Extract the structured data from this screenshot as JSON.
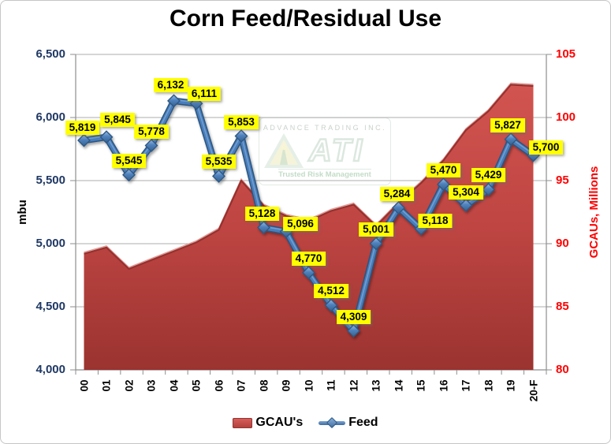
{
  "title": "Corn Feed/Residual Use",
  "watermark": {
    "line1": "ADVANCE TRADING INC.",
    "line2": "ATI",
    "line3": "Trusted Risk Management"
  },
  "chart_data": {
    "type": "combo",
    "title": "Corn Feed/Residual Use",
    "categories": [
      "00",
      "01",
      "02",
      "03",
      "04",
      "05",
      "06",
      "07",
      "08",
      "09",
      "10",
      "11",
      "12",
      "13",
      "14",
      "15",
      "16",
      "17",
      "18",
      "19",
      "20-F"
    ],
    "series": [
      {
        "name": "GCAU's",
        "type": "area",
        "axis": "right",
        "color": "#C0504D",
        "estimated_from_pixels": true,
        "values": [
          89.2,
          89.7,
          88.0,
          88.7,
          89.4,
          90.1,
          91.1,
          95.0,
          93.0,
          92.2,
          91.8,
          92.6,
          93.1,
          91.4,
          93.2,
          94.8,
          96.6,
          99.0,
          100.5,
          102.6,
          102.5
        ]
      },
      {
        "name": "Feed",
        "type": "line",
        "axis": "left",
        "color": "#4F81BD",
        "marker": "diamond",
        "values": [
          5819,
          5845,
          5545,
          5778,
          6132,
          6111,
          5535,
          5853,
          5128,
          5096,
          4770,
          4512,
          4309,
          5001,
          5284,
          5118,
          5470,
          5304,
          5429,
          5827,
          5700
        ],
        "data_labels_visible": true
      }
    ],
    "left_axis": {
      "label": "mbu",
      "min": 4000,
      "max": 6500,
      "step": 500,
      "ticks": [
        "6,500",
        "6,000",
        "5,500",
        "5,000",
        "4,500",
        "4,000"
      ],
      "color": "#1F3864"
    },
    "right_axis": {
      "label": "GCAUs, Millions",
      "min": 80,
      "max": 105,
      "step": 5,
      "ticks": [
        "105",
        "100",
        "95",
        "90",
        "85",
        "80"
      ],
      "color": "#FF0000"
    },
    "grid": true,
    "legend_position": "bottom",
    "data_label_bg": "#FFFF00"
  }
}
